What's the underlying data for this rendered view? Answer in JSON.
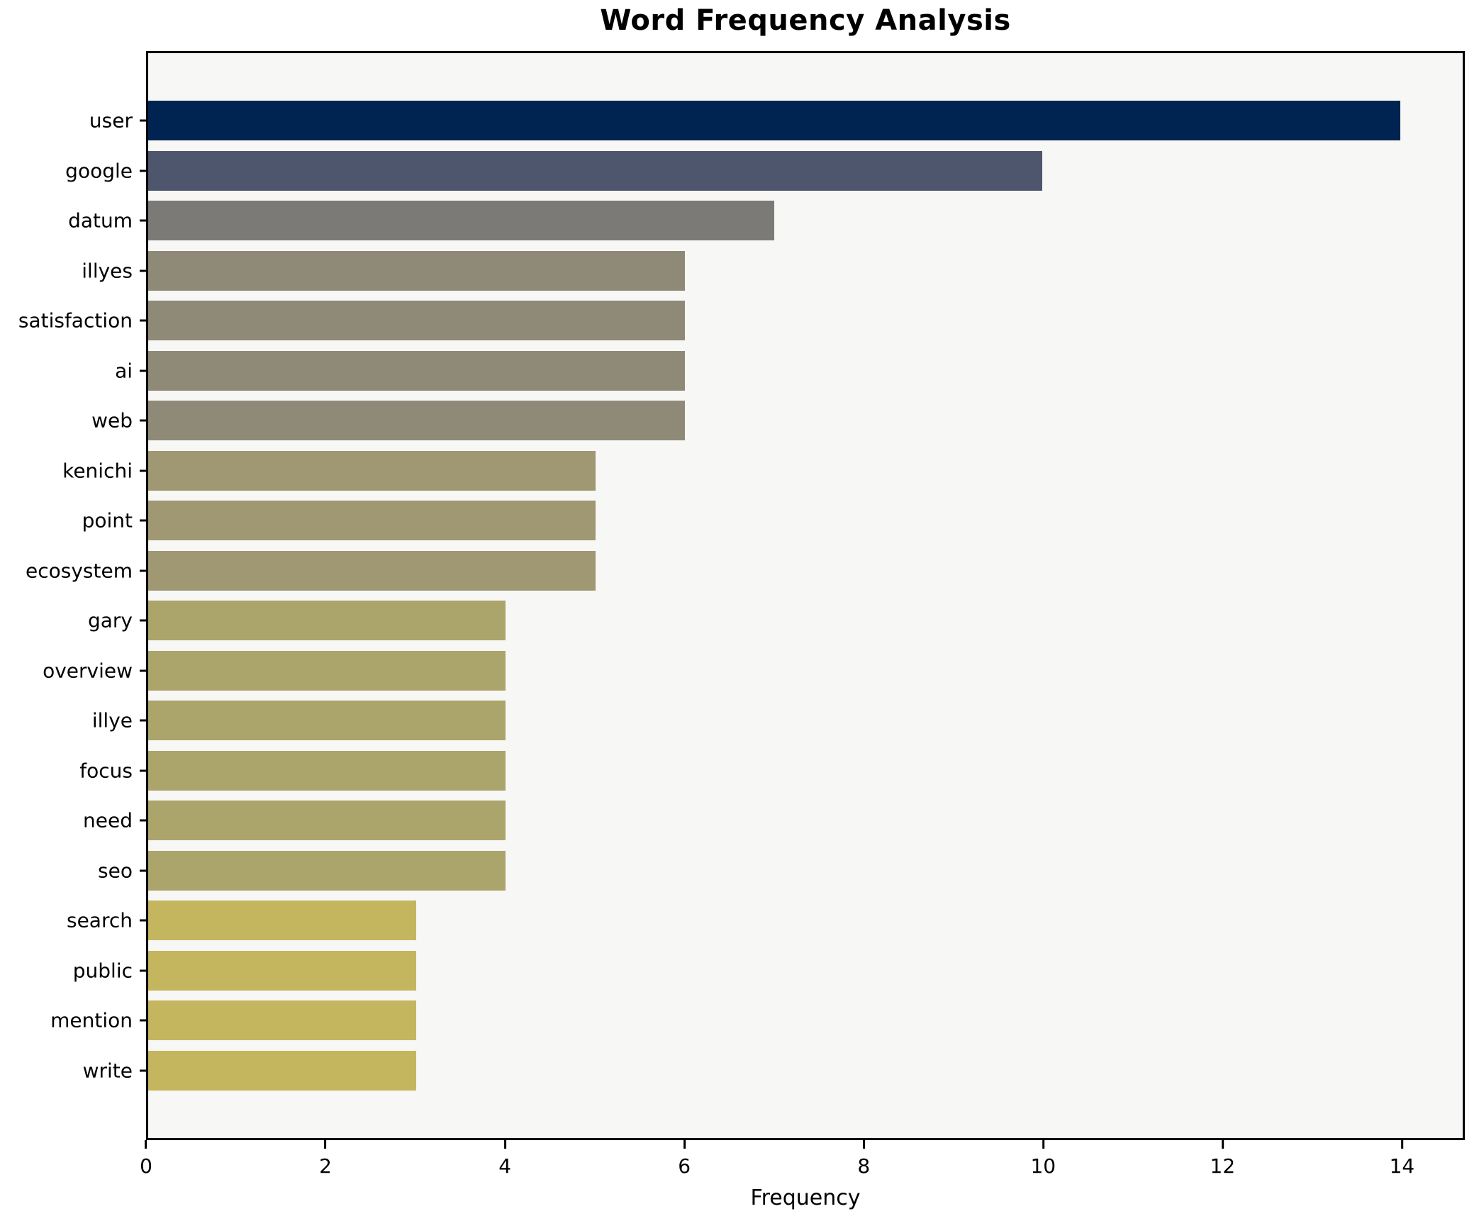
{
  "figure": {
    "title": "Word Frequency Analysis",
    "xlabel": "Frequency"
  },
  "colors": {
    "figure_background": "#ffffff",
    "plot_background": "#f7f7f5",
    "axis_line": "#000000",
    "text": "#000000"
  },
  "chart_data": {
    "type": "bar",
    "orientation": "horizontal",
    "title": "Word Frequency Analysis",
    "xlabel": "Frequency",
    "ylabel": "",
    "xlim": [
      0,
      14.7
    ],
    "xticks": [
      0,
      2,
      4,
      6,
      8,
      10,
      12,
      14
    ],
    "grid": false,
    "legend": false,
    "categories": [
      "user",
      "google",
      "datum",
      "illyes",
      "satisfaction",
      "ai",
      "web",
      "kenichi",
      "point",
      "ecosystem",
      "gary",
      "overview",
      "illye",
      "focus",
      "need",
      "seo",
      "search",
      "public",
      "mention",
      "write"
    ],
    "values": [
      14,
      10,
      7,
      6,
      6,
      6,
      6,
      5,
      5,
      5,
      4,
      4,
      4,
      4,
      4,
      4,
      3,
      3,
      3,
      3
    ],
    "bar_colors": [
      "#002452",
      "#4d566c",
      "#7b7a76",
      "#8f8977",
      "#8f8977",
      "#8f8977",
      "#8f8977",
      "#a09872",
      "#a09872",
      "#a09872",
      "#aba46b",
      "#aba46b",
      "#aba46b",
      "#aba46b",
      "#aba46b",
      "#aba46b",
      "#c3b65f",
      "#c3b65f",
      "#c3b65f",
      "#c3b65f"
    ]
  }
}
